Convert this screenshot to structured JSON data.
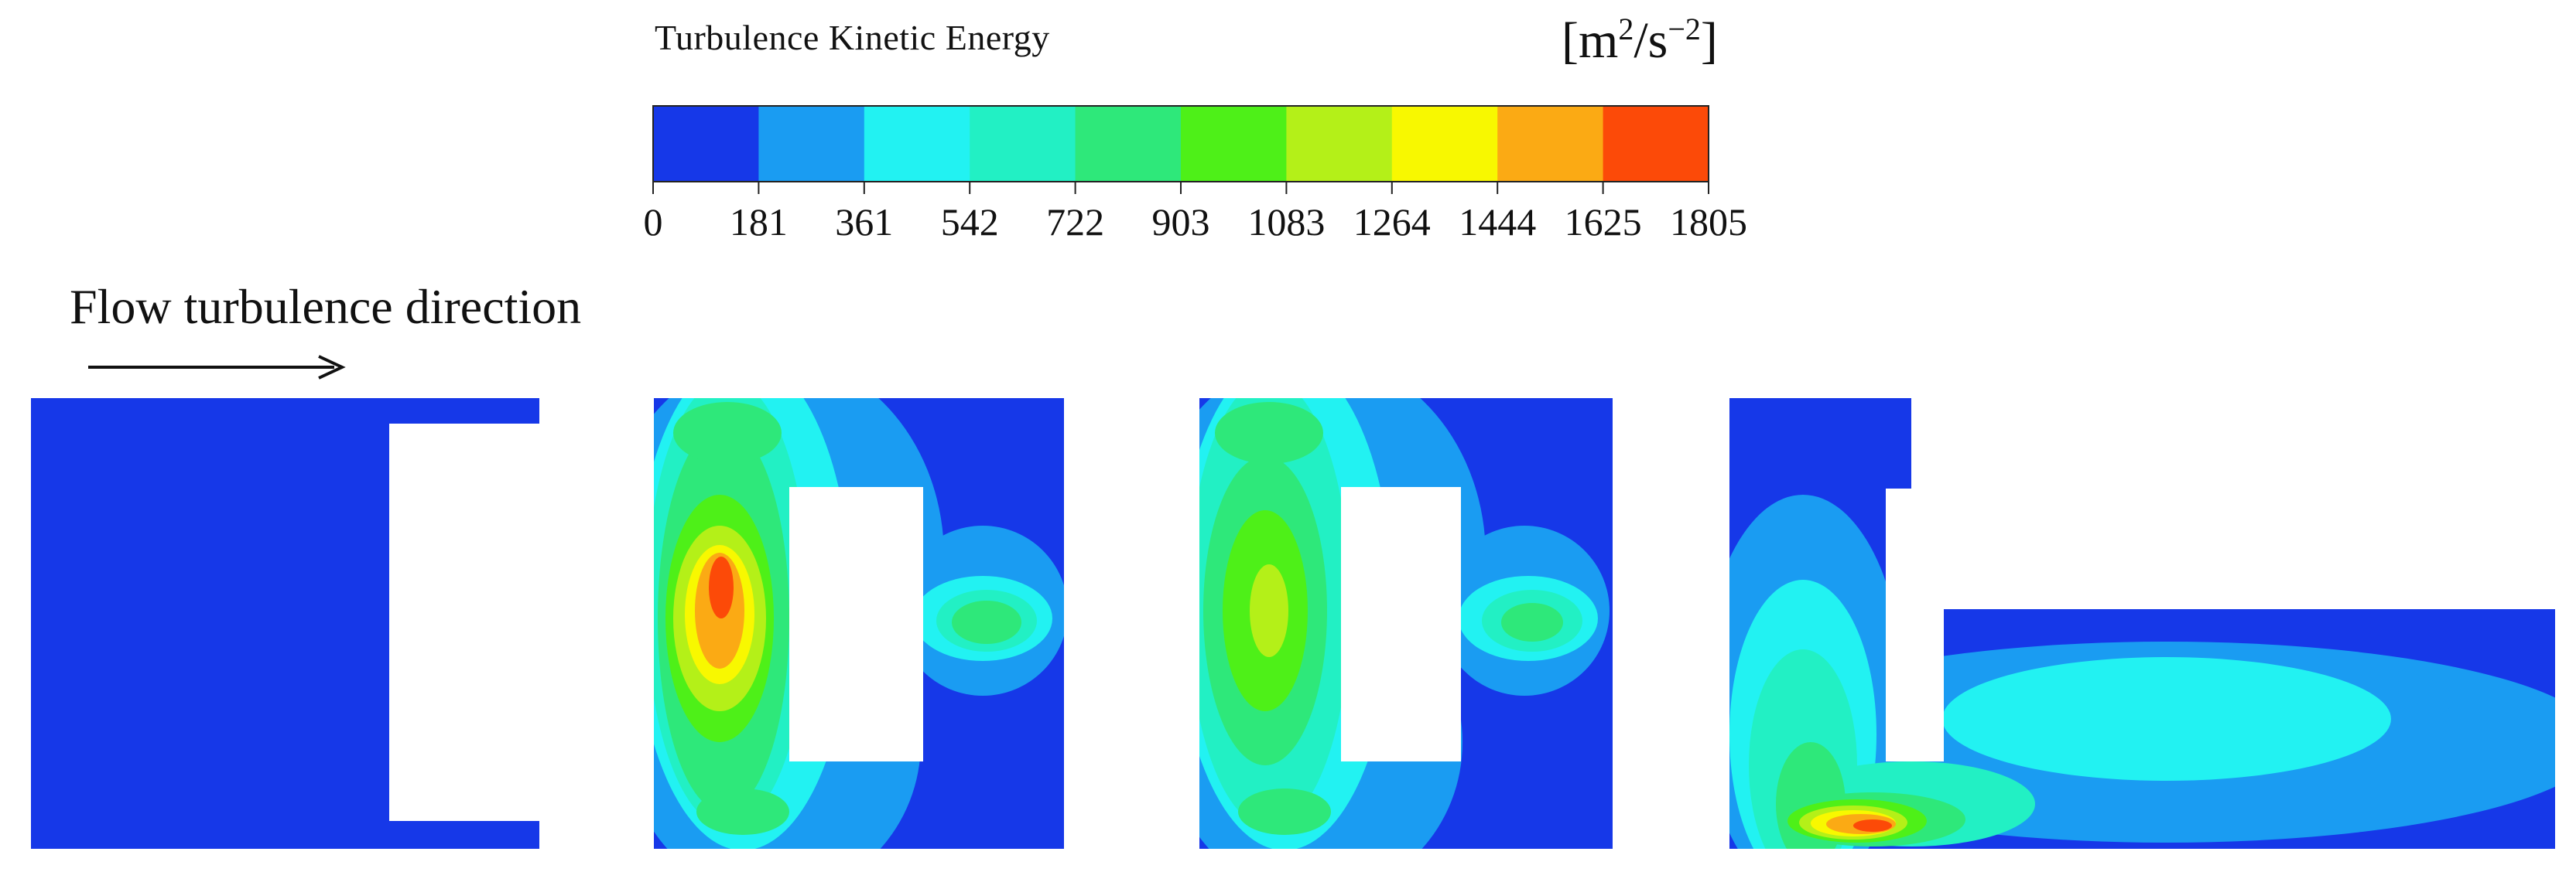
{
  "legend": {
    "title": "Turbulence Kinetic Energy",
    "unit_base": "[m",
    "unit_exp1": "2",
    "unit_mid": "/s",
    "unit_exp2": "−2",
    "unit_end": "]",
    "ticks": [
      "0",
      "181",
      "361",
      "542",
      "722",
      "903",
      "1083",
      "1264",
      "1444",
      "1625",
      "1805"
    ],
    "colors": [
      "#1638e8",
      "#1a9cf2",
      "#22f2f2",
      "#22f0c4",
      "#2ee87a",
      "#4ef018",
      "#b4f018",
      "#f8f800",
      "#fbaa14",
      "#fc4a08"
    ]
  },
  "flow": {
    "label": "Flow turbulence direction"
  },
  "panels": [
    {
      "id": "panel-1",
      "description_level": "uniform low (0-181)"
    },
    {
      "id": "panel-2",
      "peak_level": "1625-1805"
    },
    {
      "id": "panel-3",
      "peak_level": "903-1083"
    },
    {
      "id": "panel-4",
      "peak_level": "1625-1805"
    }
  ]
}
